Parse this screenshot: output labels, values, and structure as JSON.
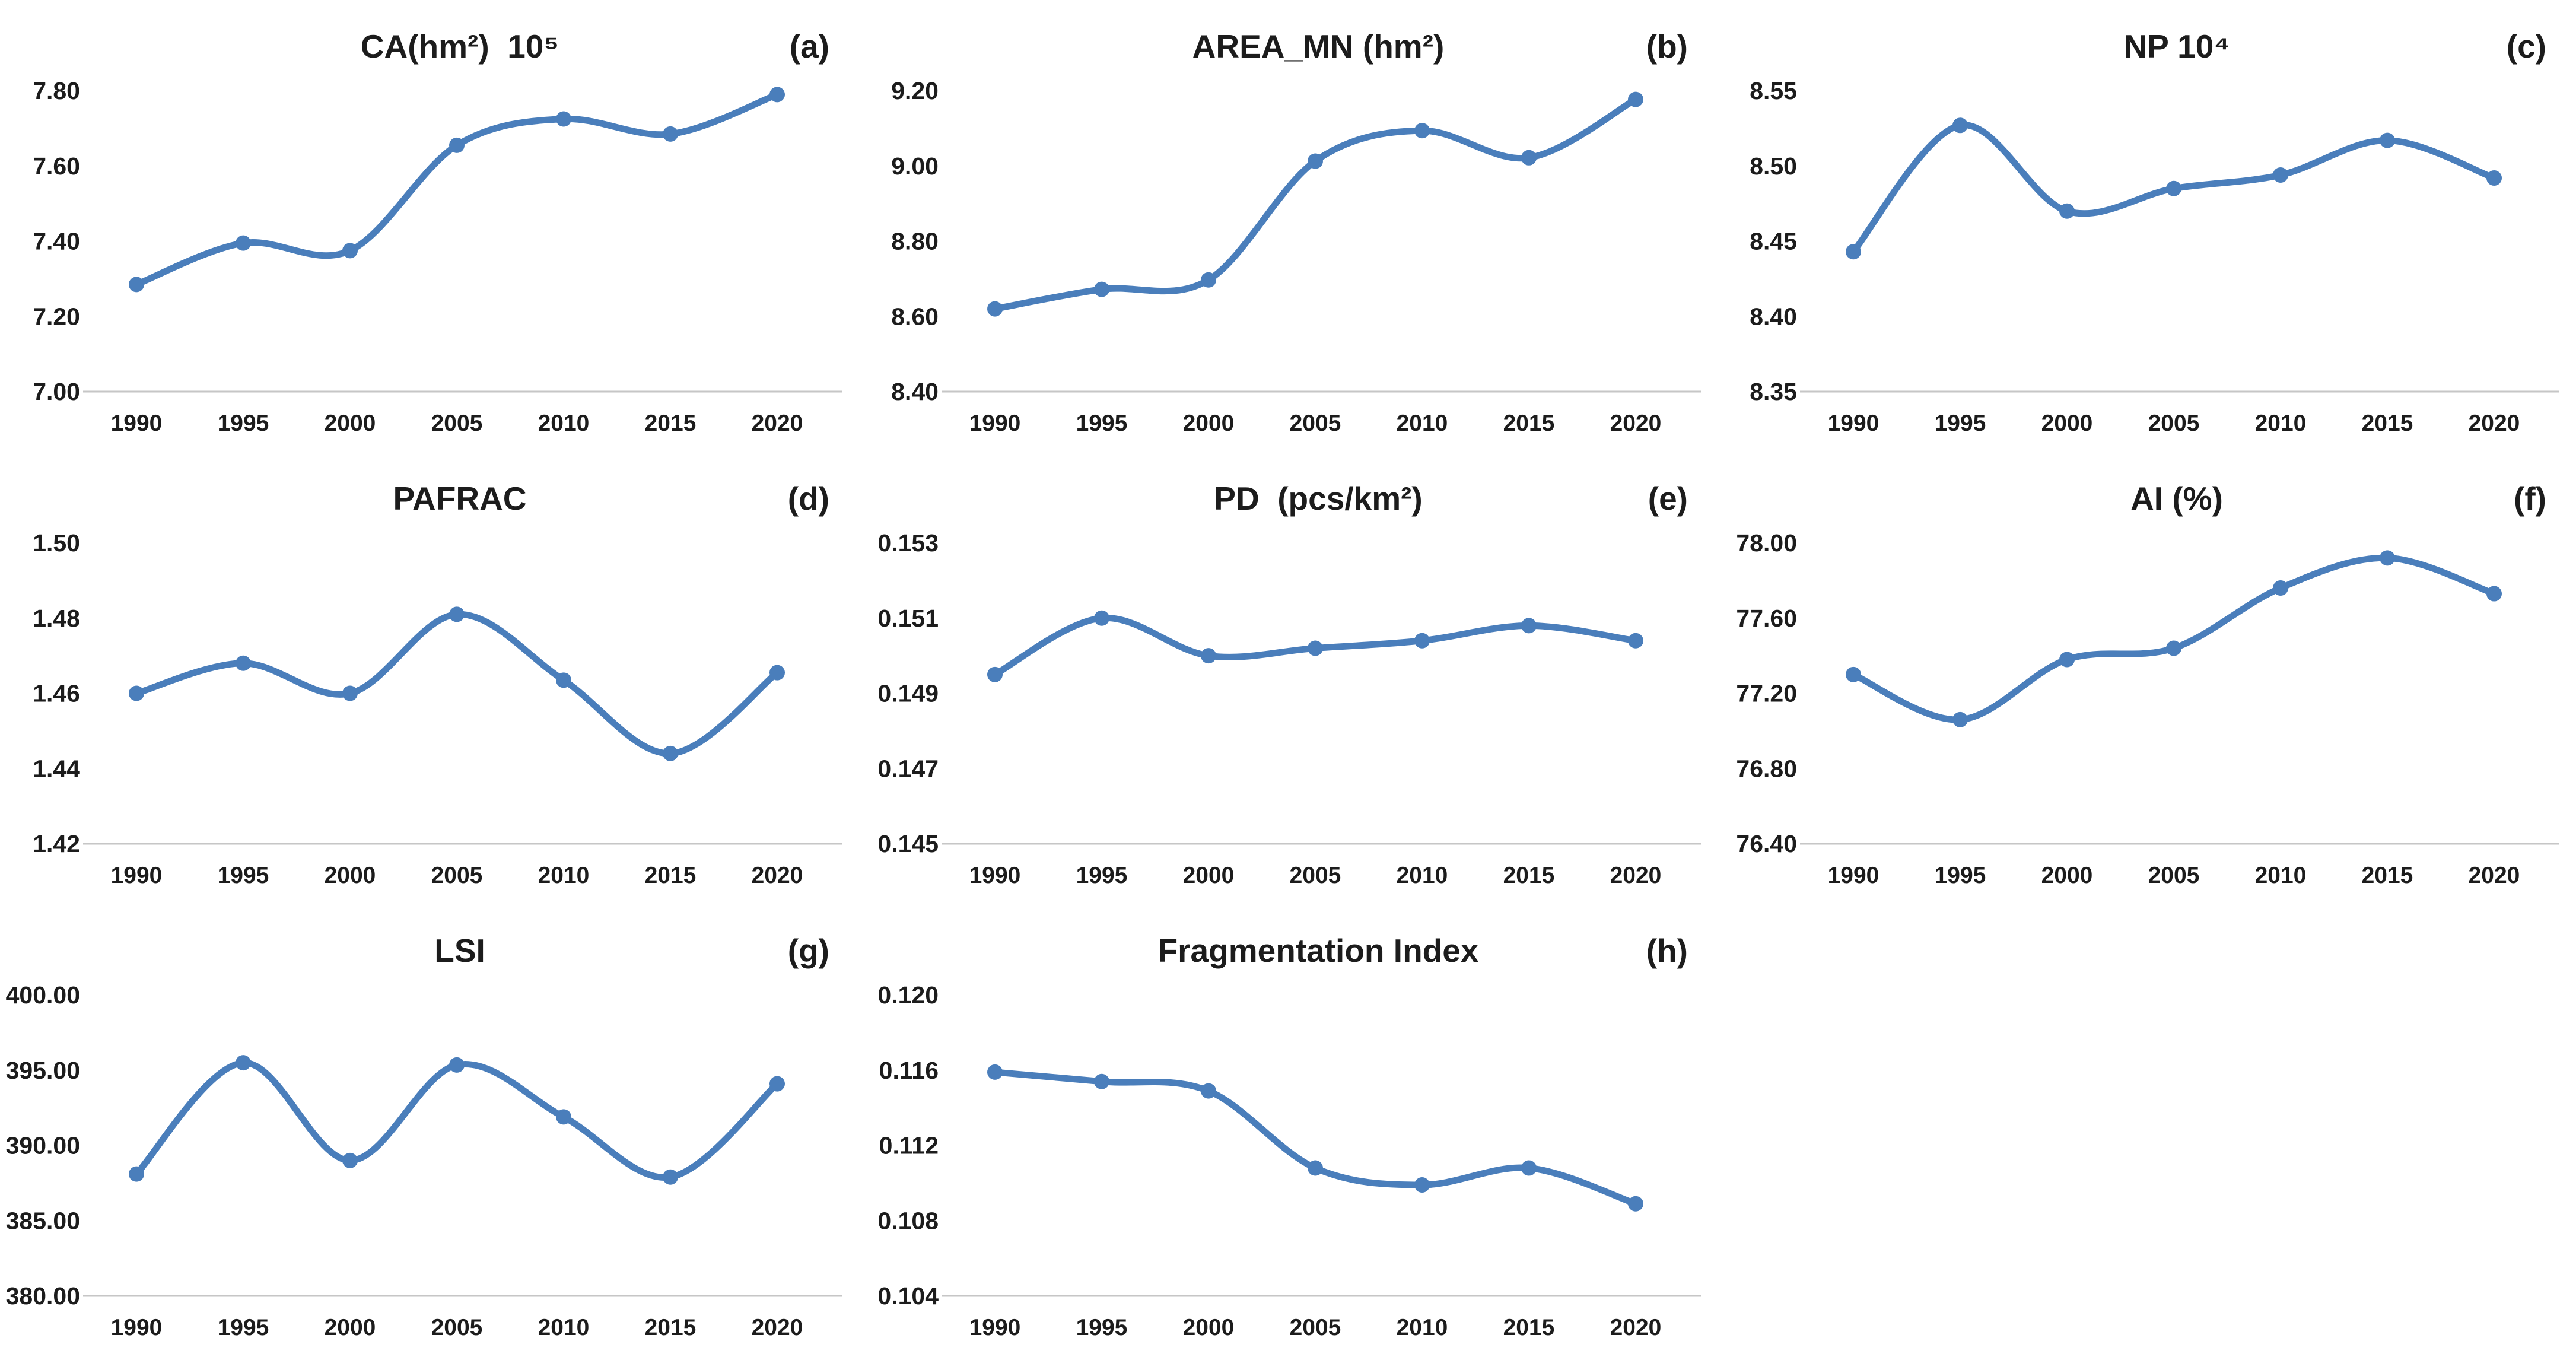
{
  "figure": {
    "background": "#ffffff",
    "text_color": "#1c1c1c",
    "line_color": "#4A7EBB",
    "marker_color": "#4A7EBB",
    "axis_line_color": "#c6c6c6"
  },
  "x_categories": [
    "1990",
    "1995",
    "2000",
    "2005",
    "2010",
    "2015",
    "2020"
  ],
  "chart_data": [
    {
      "type": "line",
      "key": "a",
      "title": "CA(hm²)  10⁵",
      "panel_label": "(a)",
      "categories": [
        "1990",
        "1995",
        "2000",
        "2005",
        "2010",
        "2015",
        "2020"
      ],
      "values": [
        7.285,
        7.395,
        7.375,
        7.655,
        7.725,
        7.685,
        7.79
      ],
      "ylim": [
        7.0,
        7.8
      ],
      "y_ticks": [
        "7.80",
        "7.60",
        "7.40",
        "7.20",
        "7.00"
      ],
      "grid": false,
      "legend": "none"
    },
    {
      "type": "line",
      "key": "b",
      "title": "AREA_MN (hm²)",
      "panel_label": "(b)",
      "categories": [
        "1990",
        "1995",
        "2000",
        "2005",
        "2010",
        "2015",
        "2020"
      ],
      "values": [
        8.62,
        8.672,
        8.697,
        9.013,
        9.094,
        9.022,
        9.177
      ],
      "ylim": [
        8.4,
        9.2
      ],
      "y_ticks": [
        "9.20",
        "9.00",
        "8.80",
        "8.60",
        "8.40"
      ],
      "grid": false,
      "legend": "none"
    },
    {
      "type": "line",
      "key": "c",
      "title": "NP 10⁴",
      "panel_label": "(c)",
      "categories": [
        "1990",
        "1995",
        "2000",
        "2005",
        "2010",
        "2015",
        "2020"
      ],
      "values": [
        8.443,
        8.527,
        8.47,
        8.485,
        8.494,
        8.517,
        8.492
      ],
      "ylim": [
        8.35,
        8.55
      ],
      "y_ticks": [
        "8.55",
        "8.50",
        "8.45",
        "8.40",
        "8.35"
      ],
      "grid": false,
      "legend": "none"
    },
    {
      "type": "line",
      "key": "d",
      "title": "PAFRAC",
      "panel_label": "(d)",
      "categories": [
        "1990",
        "1995",
        "2000",
        "2005",
        "2010",
        "2015",
        "2020"
      ],
      "values": [
        1.46,
        1.468,
        1.46,
        1.481,
        1.4635,
        1.444,
        1.4655
      ],
      "ylim": [
        1.42,
        1.5
      ],
      "y_ticks": [
        "1.50",
        "1.48",
        "1.46",
        "1.44",
        "1.42"
      ],
      "grid": false,
      "legend": "none"
    },
    {
      "type": "line",
      "key": "e",
      "title": "PD  (pcs/km²)",
      "panel_label": "(e)",
      "categories": [
        "1990",
        "1995",
        "2000",
        "2005",
        "2010",
        "2015",
        "2020"
      ],
      "values": [
        0.1495,
        0.151,
        0.15,
        0.1502,
        0.1504,
        0.1508,
        0.1504
      ],
      "ylim": [
        0.145,
        0.153
      ],
      "y_ticks": [
        "0.153",
        "0.151",
        "0.149",
        "0.147",
        "0.145"
      ],
      "grid": false,
      "legend": "none"
    },
    {
      "type": "line",
      "key": "f",
      "title": "AI (%)",
      "panel_label": "(f)",
      "categories": [
        "1990",
        "1995",
        "2000",
        "2005",
        "2010",
        "2015",
        "2020"
      ],
      "values": [
        77.3,
        77.06,
        77.38,
        77.44,
        77.76,
        77.92,
        77.73
      ],
      "ylim": [
        76.4,
        78.0
      ],
      "y_ticks": [
        "78.00",
        "77.60",
        "77.20",
        "76.80",
        "76.40"
      ],
      "grid": false,
      "legend": "none"
    },
    {
      "type": "line",
      "key": "g",
      "title": "LSI",
      "panel_label": "(g)",
      "categories": [
        "1990",
        "1995",
        "2000",
        "2005",
        "2010",
        "2015",
        "2020"
      ],
      "values": [
        388.1,
        395.5,
        389.0,
        395.35,
        391.9,
        387.9,
        394.1
      ],
      "ylim": [
        380.0,
        400.0
      ],
      "y_ticks": [
        "400.00",
        "395.00",
        "390.00",
        "385.00",
        "380.00"
      ],
      "grid": false,
      "legend": "none"
    },
    {
      "type": "line",
      "key": "h",
      "title": "Fragmentation Index",
      "panel_label": "(h)",
      "categories": [
        "1990",
        "1995",
        "2000",
        "2005",
        "2010",
        "2015",
        "2020"
      ],
      "values": [
        0.1159,
        0.1154,
        0.1149,
        0.1108,
        0.1099,
        0.1108,
        0.1089
      ],
      "ylim": [
        0.104,
        0.12
      ],
      "y_ticks": [
        "0.120",
        "0.116",
        "0.112",
        "0.108",
        "0.104"
      ],
      "grid": false,
      "legend": "none"
    }
  ]
}
